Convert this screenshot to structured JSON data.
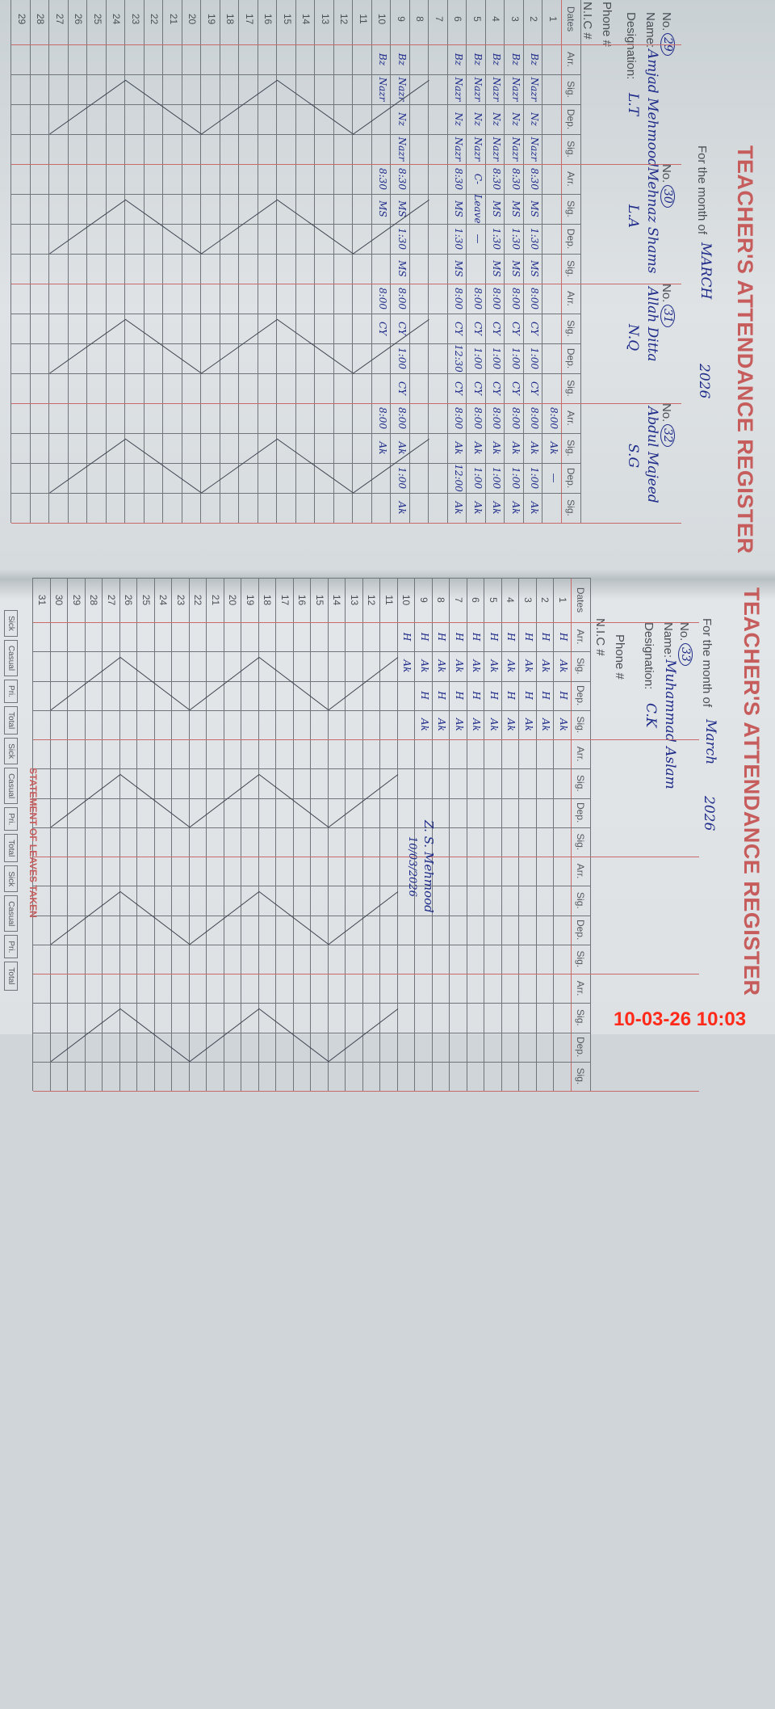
{
  "left_page": {
    "title": "TEACHER'S ATTENDANCE REGISTER",
    "month_label": "For the month of",
    "month_value": "MARCH",
    "year": "2026",
    "labels": {
      "no": "No.",
      "name": "Name:",
      "designation": "Designation:",
      "phone": "Phone #",
      "nic": "N.I.C #",
      "dates": "Dates"
    },
    "columns": [
      "Arr.",
      "Sig.",
      "Dep.",
      "Sig."
    ],
    "teachers": [
      {
        "no": "29",
        "name": "Amjad Mehmood",
        "designation": "L.T"
      },
      {
        "no": "30",
        "name": "Mehnaz Shams",
        "designation": "L.A"
      },
      {
        "no": "31",
        "name": "Allah Ditta",
        "designation": "N.Q"
      },
      {
        "no": "32",
        "name": "Abdul Majeed",
        "designation": "S.G"
      }
    ],
    "rows": [
      {
        "date": "1",
        "cells": [
          "",
          "",
          "",
          "",
          "",
          "",
          "",
          "",
          "",
          "",
          "",
          "",
          "8:00",
          "Ak",
          "—",
          ""
        ]
      },
      {
        "date": "2",
        "cells": [
          "Bz",
          "Nazr",
          "Nz",
          "Nazr",
          "8:30",
          "MS",
          "1:30",
          "MS",
          "8:00",
          "CY",
          "1:00",
          "CY",
          "8:00",
          "Ak",
          "1:00",
          "Ak"
        ]
      },
      {
        "date": "3",
        "cells": [
          "Bz",
          "Nazr",
          "Nz",
          "Nazr",
          "8:30",
          "MS",
          "1:30",
          "MS",
          "8:00",
          "CY",
          "1:00",
          "CY",
          "8:00",
          "Ak",
          "1:00",
          "Ak"
        ]
      },
      {
        "date": "4",
        "cells": [
          "Bz",
          "Nazr",
          "Nz",
          "Nazr",
          "8:30",
          "MS",
          "1:30",
          "MS",
          "8:00",
          "CY",
          "1:00",
          "CY",
          "8:00",
          "Ak",
          "1:00",
          "Ak"
        ]
      },
      {
        "date": "5",
        "cells": [
          "Bz",
          "Nazr",
          "Nz",
          "Nazr",
          "C-",
          "Leave",
          "—",
          "",
          "8:00",
          "CY",
          "1:00",
          "CY",
          "8:00",
          "Ak",
          "1:00",
          "Ak"
        ]
      },
      {
        "date": "6",
        "cells": [
          "Bz",
          "Nazr",
          "Nz",
          "Nazr",
          "8:30",
          "MS",
          "1:30",
          "MS",
          "8:00",
          "CY",
          "12:30",
          "CY",
          "8:00",
          "Ak",
          "12:00",
          "Ak"
        ]
      },
      {
        "date": "7",
        "cells": [
          "",
          "",
          "",
          "",
          "",
          "",
          "",
          "",
          "",
          "",
          "",
          "",
          "",
          "",
          "",
          ""
        ]
      },
      {
        "date": "8",
        "cells": [
          "",
          "",
          "",
          "",
          "",
          "",
          "",
          "",
          "",
          "",
          "",
          "",
          "",
          "",
          "",
          ""
        ]
      },
      {
        "date": "9",
        "cells": [
          "Bz",
          "Nazr",
          "Nz",
          "Nazr",
          "8:30",
          "MS",
          "1:30",
          "MS",
          "8:00",
          "CY",
          "1:00",
          "CY",
          "8:00",
          "Ak",
          "1:00",
          "Ak"
        ]
      },
      {
        "date": "10",
        "cells": [
          "Bz",
          "Nazr",
          "",
          "",
          "8:30",
          "MS",
          "",
          "",
          "8:00",
          "CY",
          "",
          "",
          "8:00",
          "Ak",
          "",
          ""
        ]
      },
      {
        "date": "11"
      },
      {
        "date": "12"
      },
      {
        "date": "13"
      },
      {
        "date": "14"
      },
      {
        "date": "15"
      },
      {
        "date": "16"
      },
      {
        "date": "17"
      },
      {
        "date": "18"
      },
      {
        "date": "19"
      },
      {
        "date": "20"
      },
      {
        "date": "21"
      },
      {
        "date": "22"
      },
      {
        "date": "23"
      },
      {
        "date": "24"
      },
      {
        "date": "25"
      },
      {
        "date": "26"
      },
      {
        "date": "27"
      },
      {
        "date": "28"
      },
      {
        "date": "29"
      }
    ]
  },
  "right_page": {
    "title": "TEACHER'S ATTENDANCE REGISTER",
    "month_label": "For the month of",
    "month_value": "March",
    "year": "2026",
    "labels": {
      "no": "No.",
      "name": "Name:",
      "designation": "Designation:",
      "phone": "Phone #",
      "nic": "N.I.C #",
      "dates": "Dates"
    },
    "columns": [
      "Arr.",
      "Sig.",
      "Dep.",
      "Sig."
    ],
    "teachers": [
      {
        "no": "33",
        "name": "Muhammad Aslam",
        "designation": "C.K"
      }
    ],
    "rows": [
      {
        "date": "1",
        "cells": [
          "H",
          "Ak",
          "H",
          "Ak"
        ]
      },
      {
        "date": "2",
        "cells": [
          "H",
          "Ak",
          "H",
          "Ak"
        ]
      },
      {
        "date": "3",
        "cells": [
          "H",
          "Ak",
          "H",
          "Ak"
        ]
      },
      {
        "date": "4",
        "cells": [
          "H",
          "Ak",
          "H",
          "Ak"
        ]
      },
      {
        "date": "5",
        "cells": [
          "H",
          "Ak",
          "H",
          "Ak"
        ]
      },
      {
        "date": "6",
        "cells": [
          "H",
          "Ak",
          "H",
          "Ak"
        ]
      },
      {
        "date": "7",
        "cells": [
          "H",
          "Ak",
          "H",
          "Ak"
        ]
      },
      {
        "date": "8",
        "cells": [
          "H",
          "Ak",
          "H",
          "Ak"
        ]
      },
      {
        "date": "9",
        "cells": [
          "H",
          "Ak",
          "H",
          "Ak"
        ]
      },
      {
        "date": "10",
        "cells": [
          "H",
          "Ak",
          "",
          ""
        ]
      },
      {
        "date": "11"
      },
      {
        "date": "12"
      },
      {
        "date": "13"
      },
      {
        "date": "14"
      },
      {
        "date": "15"
      },
      {
        "date": "16"
      },
      {
        "date": "17"
      },
      {
        "date": "18"
      },
      {
        "date": "19"
      },
      {
        "date": "20"
      },
      {
        "date": "21"
      },
      {
        "date": "22"
      },
      {
        "date": "23"
      },
      {
        "date": "24"
      },
      {
        "date": "25"
      },
      {
        "date": "26"
      },
      {
        "date": "27"
      },
      {
        "date": "28"
      },
      {
        "date": "29"
      },
      {
        "date": "30"
      },
      {
        "date": "31"
      }
    ],
    "verification": {
      "signature": "Z. S. Mehmood",
      "date": "10/03/2026"
    },
    "statement_title": "STATEMENT OF LEAVES TAKEN",
    "statement_columns": [
      "Sick",
      "Casual",
      "Pri.",
      "Total"
    ]
  },
  "camera_timestamp": "10-03-26  10:03",
  "colors": {
    "ink": "#1f2c8a",
    "ruling_red": "#c96a6a",
    "title_red": "#c65c5c",
    "grid": "#6f757b",
    "timestamp": "#ff2a1a"
  }
}
